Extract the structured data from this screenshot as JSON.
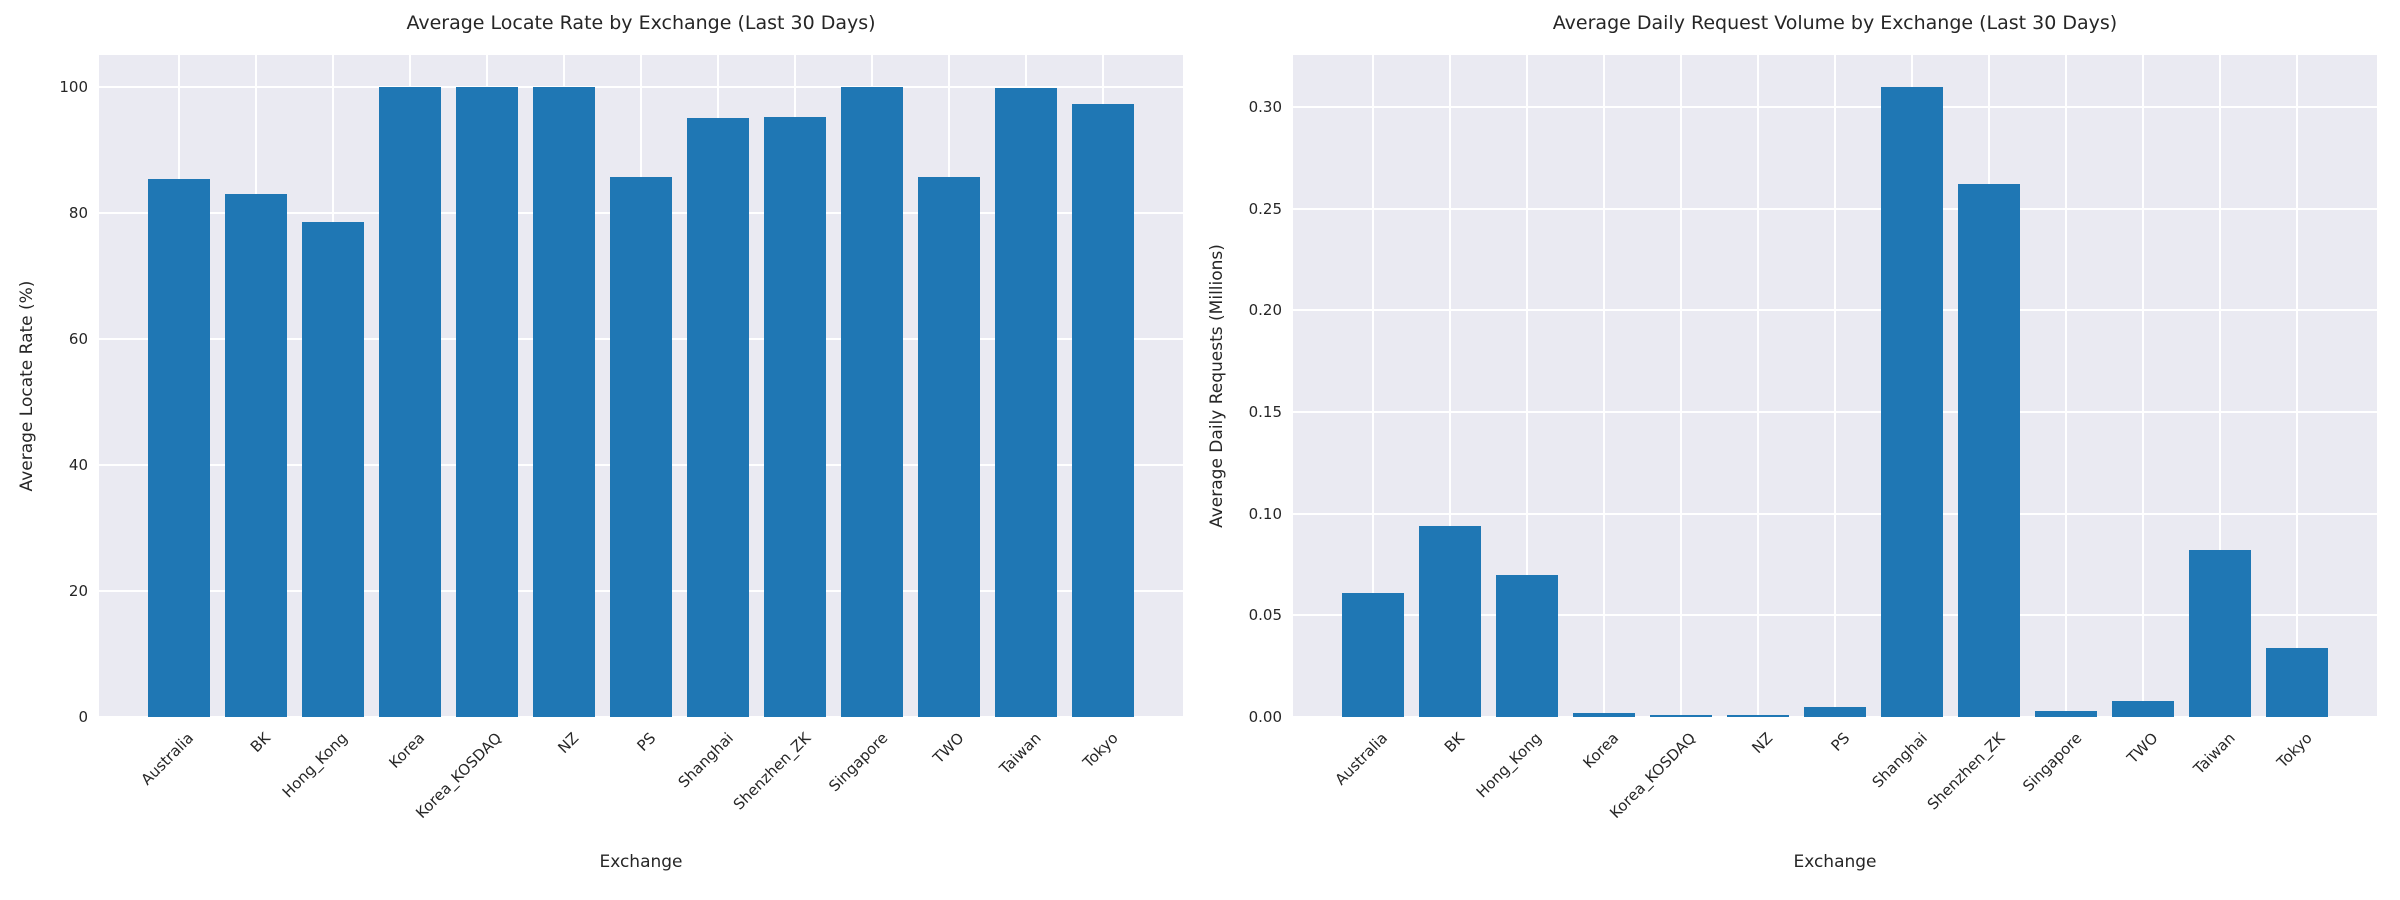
{
  "figure": {
    "background_color": "#ffffff",
    "axes_background_color": "#eaeaf2",
    "gridline_color": "#ffffff",
    "bar_color": "#1f77b4",
    "text_color": "#262626"
  },
  "chart_data": [
    {
      "type": "bar",
      "title": "Average Locate Rate by Exchange (Last 30 Days)",
      "xlabel": "Exchange",
      "ylabel": "Average Locate Rate (%)",
      "categories": [
        "Australia",
        "BK",
        "Hong_Kong",
        "Korea",
        "Korea_KOSDAQ",
        "NZ",
        "PS",
        "Shanghai",
        "Shenzhen_ZK",
        "Singapore",
        "TWO",
        "Taiwan",
        "Tokyo"
      ],
      "values": [
        85.3,
        83.0,
        78.5,
        100.0,
        100.0,
        100.0,
        85.7,
        95.0,
        95.2,
        100.0,
        85.7,
        99.7,
        97.2
      ],
      "ytick_labels": [
        "0",
        "20",
        "40",
        "60",
        "80",
        "100"
      ],
      "yticks": [
        0,
        20,
        40,
        60,
        80,
        100
      ],
      "ylim": [
        0,
        105
      ],
      "grid": true,
      "legend_position": "none"
    },
    {
      "type": "bar",
      "title": "Average Daily Request Volume by Exchange (Last 30 Days)",
      "xlabel": "Exchange",
      "ylabel": "Average Daily Requests (Millions)",
      "categories": [
        "Australia",
        "BK",
        "Hong_Kong",
        "Korea",
        "Korea_KOSDAQ",
        "NZ",
        "PS",
        "Shanghai",
        "Shenzhen_ZK",
        "Singapore",
        "TWO",
        "Taiwan",
        "Tokyo"
      ],
      "values": [
        0.061,
        0.094,
        0.07,
        0.002,
        0.001,
        0.001,
        0.005,
        0.31,
        0.262,
        0.003,
        0.008,
        0.082,
        0.034
      ],
      "ytick_labels": [
        "0.00",
        "0.05",
        "0.10",
        "0.15",
        "0.20",
        "0.25",
        "0.30"
      ],
      "yticks": [
        0.0,
        0.05,
        0.1,
        0.15,
        0.2,
        0.25,
        0.3
      ],
      "ylim": [
        0,
        0.3256
      ],
      "grid": true,
      "legend_position": "none"
    }
  ]
}
